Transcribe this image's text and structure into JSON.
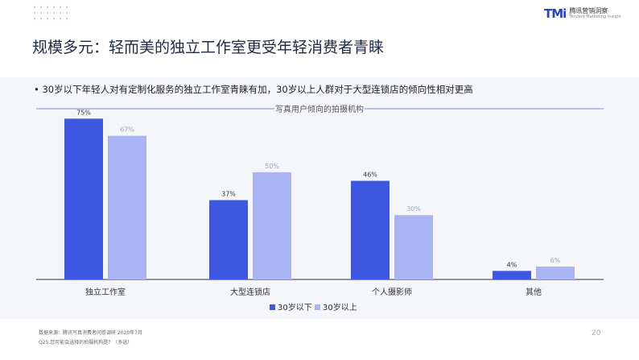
{
  "header": {
    "logo_mark": "TMi",
    "logo_cn": "腾讯营销洞察",
    "logo_en": "Tencent Marketing Insight",
    "title": "规模多元：轻而美的独立工作室更受年轻消费者青睐"
  },
  "bullet_text": "30岁以下年轻人对有定制化服务的独立工作室青睐有加，30岁以上人群对于大型连锁店的倾向性相对更高",
  "footer": {
    "source": "数据来源：腾讯写真消费者问卷调研 2020年7月",
    "question": "Q25.您可能会选择的拍摄机构是？（多选）",
    "page_number": "20"
  },
  "chart_data": {
    "type": "bar",
    "title": "写真用户倾向的拍摄机构",
    "categories": [
      "独立工作室",
      "大型连锁店",
      "个人摄影师",
      "其他"
    ],
    "series": [
      {
        "name": "30岁以下",
        "values": [
          75,
          37,
          46,
          4
        ],
        "labels": [
          "75%",
          "37%",
          "46%",
          "4%"
        ],
        "color": "#3d57e0"
      },
      {
        "name": "30岁以上",
        "values": [
          67,
          50,
          30,
          6
        ],
        "labels": [
          "67%",
          "50%",
          "30%",
          "6%"
        ],
        "color": "#a8b5f2"
      }
    ],
    "ylim": [
      0,
      80
    ],
    "grid": false,
    "legend": "bottom-center"
  },
  "colors": {
    "accent": "#3d57e0",
    "accent_light": "#a8b5f2",
    "title": "#1f2a44",
    "panel": "#f5f6f9"
  }
}
